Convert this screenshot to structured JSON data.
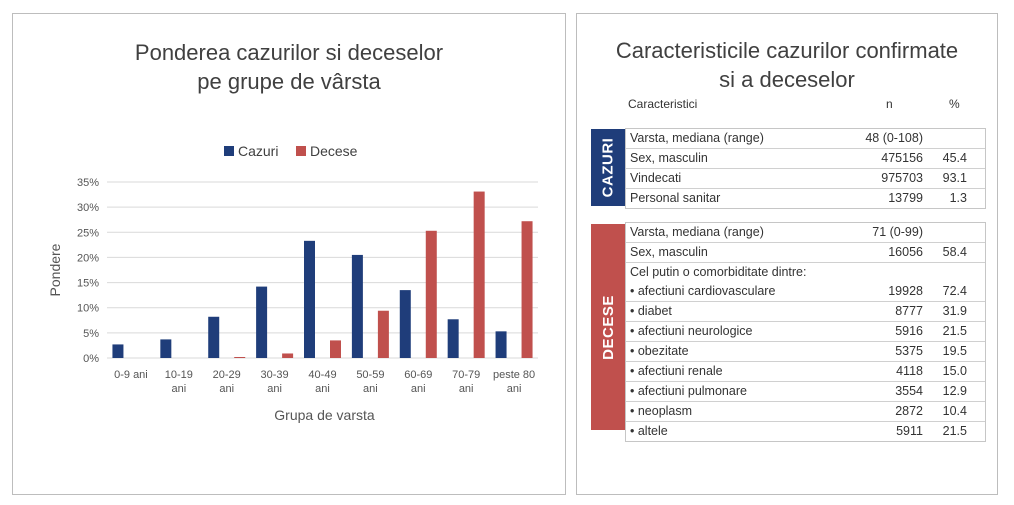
{
  "left": {
    "title_line1": "Ponderea cazurilor si deceselor",
    "title_line2": "pe grupe de vârsta"
  },
  "chart_data": {
    "type": "bar",
    "categories": [
      [
        "0-9 ani"
      ],
      [
        "10-19",
        "ani"
      ],
      [
        "20-29",
        "ani"
      ],
      [
        "30-39",
        "ani"
      ],
      [
        "40-49",
        "ani"
      ],
      [
        "50-59",
        "ani"
      ],
      [
        "60-69",
        "ani"
      ],
      [
        "70-79",
        "ani"
      ],
      [
        "peste 80",
        "ani"
      ]
    ],
    "series": [
      {
        "name": "Cazuri",
        "color": "#1f3d7a",
        "values": [
          2.7,
          3.7,
          8.2,
          14.2,
          23.3,
          20.5,
          13.5,
          7.7,
          5.3
        ]
      },
      {
        "name": "Decese",
        "color": "#c0504d",
        "values": [
          0.0,
          0.0,
          0.2,
          0.9,
          3.5,
          9.4,
          25.3,
          33.1,
          27.2
        ]
      }
    ],
    "xlabel": "Grupa de varsta",
    "ylabel": "Pondere",
    "ylim": [
      0,
      35
    ],
    "yticks": [
      "0%",
      "5%",
      "10%",
      "15%",
      "20%",
      "25%",
      "30%",
      "35%"
    ],
    "grid": true,
    "legend_position": "top"
  },
  "right": {
    "title_line1": "Caracteristicile cazurilor confirmate",
    "title_line2": "si a deceselor",
    "col_char": "Caracteristici",
    "col_n": "n",
    "col_pct": "%",
    "cazuri_label": "CAZURI",
    "decese_label": "DECESE",
    "cazuri_color": "#1f3d7a",
    "decese_color": "#c0504d",
    "cazuri_rows": [
      {
        "label": "Varsta, mediana (range)",
        "n": "48 (0-108)",
        "pct": ""
      },
      {
        "label": "Sex, masculin",
        "n": "475156",
        "pct": "45.4"
      },
      {
        "label": "Vindecati",
        "n": "975703",
        "pct": "93.1"
      },
      {
        "label": "Personal sanitar",
        "n": "13799",
        "pct": "1.3"
      }
    ],
    "decese_rows": [
      {
        "label": "Varsta, mediana (range)",
        "n": "71 (0-99)",
        "pct": ""
      },
      {
        "label": "Sex, masculin",
        "n": "16056",
        "pct": "58.4"
      },
      {
        "label": "Cel putin o comorbiditate dintre:",
        "n": "",
        "pct": ""
      },
      {
        "label": "• afectiuni cardiovasculare",
        "n": "19928",
        "pct": "72.4"
      },
      {
        "label": "• diabet",
        "n": "8777",
        "pct": "31.9"
      },
      {
        "label": "• afectiuni neurologice",
        "n": "5916",
        "pct": "21.5"
      },
      {
        "label": "• obezitate",
        "n": "5375",
        "pct": "19.5"
      },
      {
        "label": "• afectiuni renale",
        "n": "4118",
        "pct": "15.0"
      },
      {
        "label": "• afectiuni pulmonare",
        "n": "3554",
        "pct": "12.9"
      },
      {
        "label": "• neoplasm",
        "n": "2872",
        "pct": "10.4"
      },
      {
        "label": "• altele",
        "n": "5911",
        "pct": "21.5"
      }
    ]
  }
}
